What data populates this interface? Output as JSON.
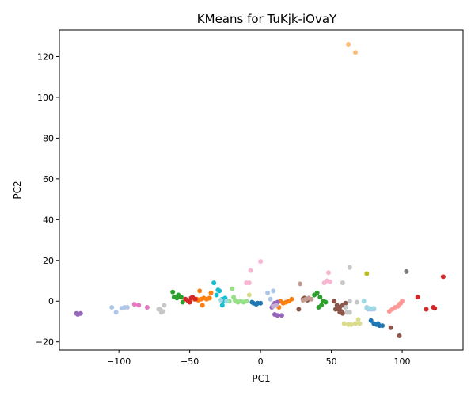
{
  "chart_data": {
    "type": "scatter",
    "title": "KMeans for TuKjk-iOvaY",
    "xlabel": "PC1",
    "ylabel": "PC2",
    "xlim": [
      -142,
      143
    ],
    "ylim": [
      -24,
      133
    ],
    "xticks": [
      -100,
      -50,
      0,
      50,
      100
    ],
    "yticks": [
      -20,
      0,
      20,
      40,
      60,
      80,
      100,
      120
    ],
    "grid": false,
    "legend": false,
    "clusters": [
      {
        "color": "#1f77b4",
        "points": [
          [
            -5,
            -1
          ],
          [
            -3,
            -1.5
          ],
          [
            -2,
            -1
          ],
          [
            0,
            -1
          ],
          [
            -6,
            -0.5
          ],
          [
            78,
            -9.5
          ],
          [
            80,
            -11
          ],
          [
            82,
            -11.5
          ],
          [
            84,
            -12
          ],
          [
            86,
            -12
          ],
          [
            83,
            -11
          ]
        ]
      },
      {
        "color": "#aec7e8",
        "points": [
          [
            -105,
            -3
          ],
          [
            -102,
            -5.5
          ],
          [
            -98,
            -3.5
          ],
          [
            -96,
            -3
          ],
          [
            -94,
            -3
          ],
          [
            7,
            1
          ],
          [
            9,
            5
          ],
          [
            5,
            4
          ],
          [
            75,
            -3
          ],
          [
            78,
            -4
          ],
          [
            80,
            -4
          ],
          [
            76,
            -4
          ]
        ]
      },
      {
        "color": "#ff7f0e",
        "points": [
          [
            -47,
            1
          ],
          [
            -45,
            1
          ],
          [
            -42,
            1
          ],
          [
            -40,
            1.5
          ],
          [
            -38,
            1
          ],
          [
            -36,
            1.5
          ],
          [
            -43,
            5
          ],
          [
            -41,
            -2
          ],
          [
            -35,
            4
          ],
          [
            -44,
            0.5
          ],
          [
            14,
            0
          ],
          [
            16,
            -1
          ],
          [
            18,
            -0.5
          ],
          [
            13,
            -3
          ],
          [
            20,
            0
          ],
          [
            22,
            1
          ]
        ]
      },
      {
        "color": "#ffbb78",
        "points": [
          [
            62,
            126
          ],
          [
            67,
            122
          ]
        ]
      },
      {
        "color": "#2ca02c",
        "points": [
          [
            -62,
            4.5
          ],
          [
            -61,
            2
          ],
          [
            -58,
            3
          ],
          [
            -56,
            2
          ],
          [
            -55,
            -0.5
          ],
          [
            -59,
            1.5
          ],
          [
            40,
            4
          ],
          [
            42,
            2
          ],
          [
            44,
            0
          ],
          [
            46,
            -0.5
          ],
          [
            43,
            -2
          ],
          [
            38,
            3
          ],
          [
            41,
            -3
          ]
        ]
      },
      {
        "color": "#98df8a",
        "points": [
          [
            -22,
            0
          ],
          [
            -20,
            6
          ],
          [
            -18,
            0.5
          ],
          [
            -16,
            -0.5
          ],
          [
            -14,
            0
          ],
          [
            -12,
            -0.5
          ],
          [
            -10,
            0
          ],
          [
            -19,
            2
          ],
          [
            -17,
            0
          ]
        ]
      },
      {
        "color": "#d62728",
        "points": [
          [
            -53,
            1
          ],
          [
            -51,
            0
          ],
          [
            -49,
            1.5
          ],
          [
            -48,
            2
          ],
          [
            -50,
            -0.5
          ],
          [
            -46,
            1
          ],
          [
            111,
            2
          ],
          [
            117,
            -4
          ],
          [
            122,
            -3
          ],
          [
            123,
            -3.5
          ],
          [
            129,
            12
          ]
        ]
      },
      {
        "color": "#ff9896",
        "points": [
          [
            91,
            -5
          ],
          [
            93,
            -4
          ],
          [
            95,
            -3
          ],
          [
            97,
            -2.5
          ],
          [
            99,
            -1
          ],
          [
            100,
            0
          ],
          [
            98,
            -1.5
          ]
        ]
      },
      {
        "color": "#9467bd",
        "points": [
          [
            -130,
            -6
          ],
          [
            -129,
            -6.5
          ],
          [
            -127,
            -6
          ],
          [
            9,
            -2
          ],
          [
            10,
            -1
          ],
          [
            11,
            -1.5
          ],
          [
            8,
            -3
          ],
          [
            12,
            -0.5
          ],
          [
            10,
            -6.5
          ],
          [
            12,
            -7
          ],
          [
            15,
            -7
          ]
        ]
      },
      {
        "color": "#c5b0d5",
        "points": [
          [
            9,
            -2.5
          ],
          [
            11,
            -2
          ]
        ]
      },
      {
        "color": "#8c564b",
        "points": [
          [
            52,
            0
          ],
          [
            54,
            -2
          ],
          [
            56,
            -3
          ],
          [
            57,
            -5
          ],
          [
            58,
            -2
          ],
          [
            60,
            -1
          ],
          [
            55,
            -4
          ],
          [
            53,
            -4
          ],
          [
            27,
            -4
          ],
          [
            30,
            1
          ],
          [
            31,
            1.5
          ],
          [
            33,
            0.5
          ],
          [
            56,
            -5.5
          ],
          [
            58,
            -6
          ],
          [
            98,
            -17
          ],
          [
            92,
            -13
          ]
        ]
      },
      {
        "color": "#c49c94",
        "points": [
          [
            32,
            1
          ],
          [
            34,
            1.5
          ],
          [
            28,
            8.5
          ],
          [
            36,
            1
          ],
          [
            30,
            0.5
          ]
        ]
      },
      {
        "color": "#e377c2",
        "points": [
          [
            -89,
            -1.5
          ],
          [
            -86,
            -2
          ],
          [
            -80,
            -3
          ]
        ]
      },
      {
        "color": "#f7b6d2",
        "points": [
          [
            -10,
            9
          ],
          [
            -8,
            9
          ],
          [
            -7,
            15
          ],
          [
            0,
            19.5
          ],
          [
            48,
            14
          ],
          [
            47,
            10
          ],
          [
            49,
            9.5
          ],
          [
            45,
            9
          ]
        ]
      },
      {
        "color": "#7f7f7f",
        "points": [
          [
            103,
            14.5
          ]
        ]
      },
      {
        "color": "#c7c7c7",
        "points": [
          [
            -72,
            -4
          ],
          [
            -70,
            -5.5
          ],
          [
            -69,
            -5
          ],
          [
            -68,
            -2
          ],
          [
            -71,
            -4
          ],
          [
            63,
            16.5
          ],
          [
            63,
            0
          ],
          [
            68,
            -0.5
          ],
          [
            60,
            -3
          ],
          [
            58,
            9
          ],
          [
            61,
            -5.5
          ],
          [
            63,
            -5.5
          ]
        ]
      },
      {
        "color": "#bcbd22",
        "points": [
          [
            75,
            13.5
          ]
        ]
      },
      {
        "color": "#dbdb8d",
        "points": [
          [
            -8,
            3
          ],
          [
            59,
            -11
          ],
          [
            62,
            -11.5
          ],
          [
            64,
            -11.5
          ],
          [
            67,
            -11
          ],
          [
            69,
            -9
          ],
          [
            70,
            -11
          ]
        ]
      },
      {
        "color": "#17becf",
        "points": [
          [
            -33,
            9
          ],
          [
            -31,
            3
          ],
          [
            -30,
            5.5
          ],
          [
            -29,
            5
          ],
          [
            -27,
            1
          ],
          [
            -26,
            0
          ],
          [
            -25,
            1.5
          ],
          [
            -27,
            -2
          ]
        ]
      },
      {
        "color": "#9edae5",
        "points": [
          [
            -28,
            0.5
          ],
          [
            -24,
            0
          ],
          [
            73,
            0
          ],
          [
            75,
            -3.5
          ],
          [
            77,
            -3.5
          ],
          [
            80,
            -3.5
          ]
        ]
      }
    ]
  }
}
